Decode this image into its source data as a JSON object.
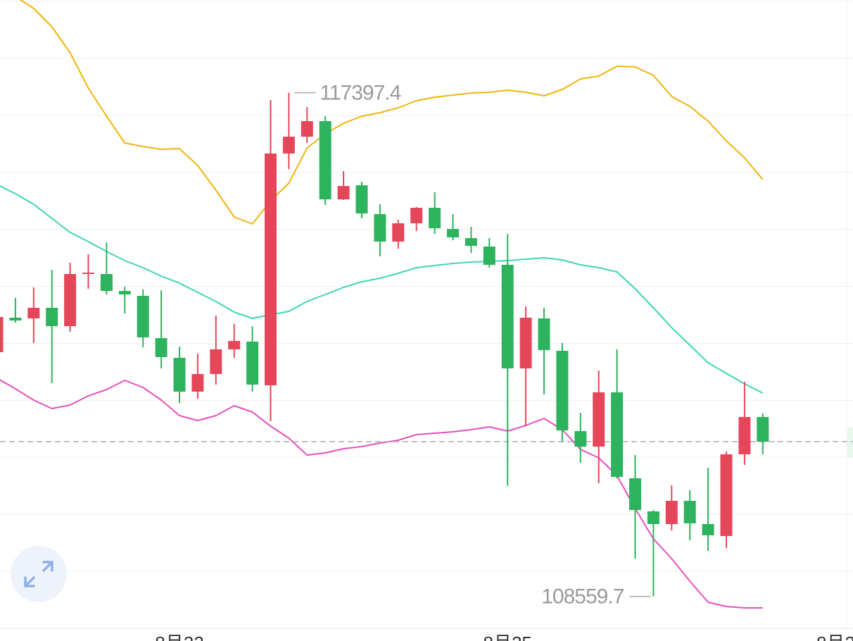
{
  "chart_data": {
    "type": "candlestick",
    "categories": [
      null,
      null,
      null,
      null,
      null,
      null,
      null,
      null,
      null,
      null,
      "8月22",
      null,
      null,
      null,
      null,
      null,
      null,
      null,
      null,
      null,
      null,
      null,
      null,
      null,
      null,
      null,
      null,
      null,
      "8月25",
      null,
      null,
      null,
      null,
      null,
      null,
      null,
      null,
      null,
      null,
      null,
      null,
      null,
      null,
      null,
      null,
      null,
      "8月2"
    ],
    "open": [
      112845,
      113451,
      113438,
      113624,
      113302,
      114217,
      114217,
      113920,
      113834,
      113092,
      112746,
      112153,
      112462,
      112895,
      113031,
      112264,
      116331,
      116627,
      116899,
      115527,
      115774,
      115268,
      114786,
      115107,
      115379,
      115008,
      114847,
      114699,
      114378,
      112561,
      113438,
      112870,
      111461,
      111189,
      112141,
      110633,
      110052,
      109829,
      110237,
      109829,
      109619,
      111053,
      111708,
      null,
      null,
      null,
      null
    ],
    "high": [
      113587,
      113797,
      113982,
      114291,
      114415,
      114563,
      114773,
      113995,
      113945,
      113933,
      112944,
      112820,
      113488,
      113340,
      113302,
      117270,
      117397.4,
      117146,
      116986,
      116022,
      115836,
      115441,
      115169,
      115391,
      115651,
      115268,
      115045,
      114847,
      114922,
      113649,
      113624,
      113006,
      111782,
      112524,
      112895,
      111041,
      110076,
      110509,
      110423,
      110818,
      111102,
      112326,
      111770,
      null,
      null,
      null,
      null
    ],
    "low": [
      112783,
      113364,
      113006,
      112301,
      113204,
      113958,
      113859,
      113525,
      112932,
      112561,
      111955,
      112029,
      112277,
      112746,
      112153,
      111634,
      116059,
      116516,
      115428,
      115515,
      115194,
      114526,
      114662,
      114971,
      114922,
      114810,
      114588,
      114328,
      110497,
      111547,
      112104,
      111275,
      110905,
      110546,
      110633,
      109224,
      108559.7,
      109718,
      109545,
      109360,
      109409,
      110868,
      111053,
      null,
      null,
      null,
      null
    ],
    "close": [
      113463,
      113401,
      113624,
      113302,
      114217,
      114242,
      113920,
      113859,
      113105,
      112759,
      112153,
      112462,
      112895,
      113043,
      112277,
      116331,
      116627,
      116899,
      115527,
      115762,
      115280,
      114786,
      115107,
      115379,
      115020,
      114860,
      114711,
      114378,
      112561,
      113451,
      112882,
      111473,
      111189,
      112141,
      110657,
      110076,
      109829,
      110237,
      109842,
      109632,
      111053,
      111708,
      111275,
      null,
      null,
      null,
      null
    ],
    "up_color": "#e5475a",
    "down_color": "#2db35d",
    "bands": [
      {
        "color": "#f0b40c",
        "values": [
          119334,
          119087,
          118877,
          118555,
          118098,
          117480,
          116986,
          116516,
          116454,
          116405,
          116417,
          116121,
          115688,
          115218,
          115095,
          115503,
          115812,
          116430,
          116677,
          116862,
          116986,
          117048,
          117134,
          117258,
          117319,
          117357,
          117394,
          117406,
          117443,
          117406,
          117344,
          117455,
          117641,
          117690,
          117863,
          117851,
          117703,
          117332,
          117159,
          116899,
          116553,
          116256,
          115873,
          null,
          null,
          null,
          null
        ]
      },
      {
        "color": "#3dd6b5",
        "values": [
          115787,
          115626,
          115441,
          115194,
          114946,
          114786,
          114613,
          114452,
          114328,
          114180,
          114056,
          113896,
          113735,
          113550,
          113438,
          113500,
          113562,
          113735,
          113859,
          113982,
          114081,
          114143,
          114229,
          114328,
          114365,
          114402,
          114427,
          114440,
          114452,
          114477,
          114501,
          114464,
          114378,
          114328,
          114254,
          113958,
          113624,
          113278,
          112969,
          112660,
          112474,
          112289,
          112128,
          null,
          null,
          null,
          null
        ]
      },
      {
        "color": "#e64fc0",
        "values": [
          112388,
          112202,
          112005,
          111856,
          111918,
          112079,
          112190,
          112351,
          112227,
          112005,
          111733,
          111646,
          111733,
          111906,
          111795,
          111547,
          111337,
          111041,
          111078,
          111152,
          111189,
          111251,
          111300,
          111399,
          111424,
          111448,
          111486,
          111535,
          111461,
          111560,
          111683,
          111486,
          111139,
          110991,
          110682,
          110101,
          109570,
          109224,
          108828,
          108457,
          108383,
          108358,
          108358,
          null,
          null,
          null,
          null
        ]
      }
    ],
    "ylim": [
      108000,
      119025
    ],
    "ygrid": [
      108000,
      109000,
      110000,
      111000,
      112000,
      113000,
      114000,
      115000,
      116000,
      117000,
      118000,
      119000
    ],
    "price_line": 111275,
    "annotations": [
      117397.4,
      108559.7
    ]
  }
}
